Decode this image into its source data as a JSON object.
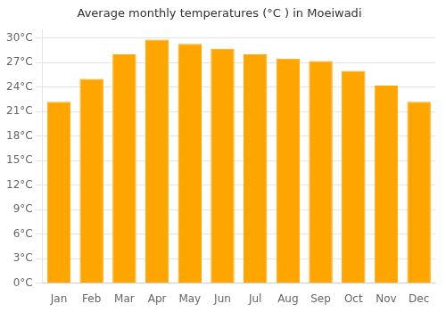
{
  "chart_data": {
    "type": "bar",
    "title": "Average monthly temperatures (°C ) in Moeiwadi",
    "categories": [
      "Jan",
      "Feb",
      "Mar",
      "Apr",
      "May",
      "Jun",
      "Jul",
      "Aug",
      "Sep",
      "Oct",
      "Nov",
      "Dec"
    ],
    "values": [
      22.2,
      25.0,
      28.0,
      29.8,
      29.3,
      28.7,
      28.0,
      27.5,
      27.2,
      26.0,
      24.2,
      22.2
    ],
    "color": "#FFA500",
    "ylim": [
      0,
      31
    ],
    "yticks": [
      {
        "value": 0,
        "label": "0°C"
      },
      {
        "value": 3,
        "label": "3°C"
      },
      {
        "value": 6,
        "label": "6°C"
      },
      {
        "value": 9,
        "label": "9°C"
      },
      {
        "value": 12,
        "label": "12°C"
      },
      {
        "value": 15,
        "label": "15°C"
      },
      {
        "value": 18,
        "label": "18°C"
      },
      {
        "value": 21,
        "label": "21°C"
      },
      {
        "value": 24,
        "label": "24°C"
      },
      {
        "value": 27,
        "label": "27°C"
      },
      {
        "value": 30,
        "label": "30°C"
      }
    ],
    "grid": true
  }
}
